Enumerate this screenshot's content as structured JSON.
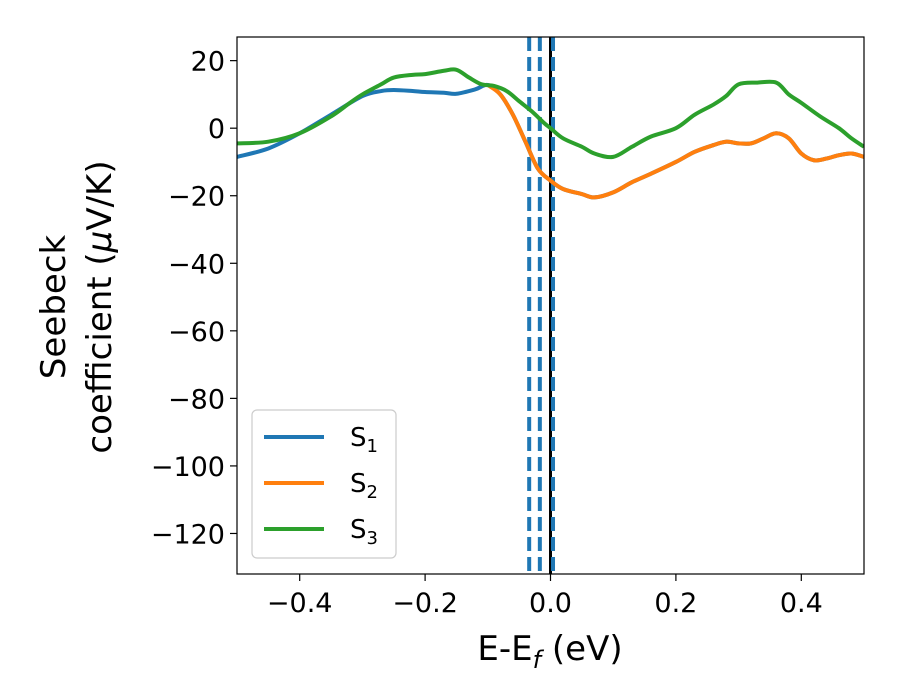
{
  "chart_data": {
    "type": "line",
    "title": "",
    "xlabel": {
      "main": "E-E",
      "sub": "f",
      "suffix": " (eV)"
    },
    "ylabel": {
      "line1": "Seebeck",
      "line2_pre": "coefficient  (",
      "line2_mu": "μ",
      "line2_post": "V/K)"
    },
    "xlim": [
      -0.5,
      0.5
    ],
    "ylim": [
      -132,
      27
    ],
    "xticks": [
      -0.4,
      -0.2,
      0.0,
      0.2,
      0.4
    ],
    "xtick_labels": [
      "−0.4",
      "−0.2",
      "0.0",
      "0.2",
      "0.4"
    ],
    "yticks": [
      20,
      0,
      -20,
      -40,
      -60,
      -80,
      -100,
      -120
    ],
    "ytick_labels": [
      "20",
      "0",
      "−20",
      "−40",
      "−60",
      "−80",
      "−100",
      "−120"
    ],
    "grid": false,
    "legend_position": "lower-left",
    "series": [
      {
        "name": "S",
        "sub": "1",
        "color": "#1f77b4",
        "x": [
          -0.5,
          -0.45,
          -0.4,
          -0.35,
          -0.3,
          -0.27,
          -0.25,
          -0.22,
          -0.2,
          -0.17,
          -0.15,
          -0.12,
          -0.1,
          -0.08,
          -0.06,
          -0.04,
          -0.02,
          0.0,
          0.02,
          0.05,
          0.07,
          0.1,
          0.13,
          0.16,
          0.2,
          0.23,
          0.26,
          0.28,
          0.3,
          0.32,
          0.34,
          0.36,
          0.38,
          0.4,
          0.42,
          0.44,
          0.46,
          0.48,
          0.5
        ],
        "y": [
          -8.5,
          -6,
          -1.5,
          4,
          9.5,
          11,
          11.3,
          11,
          10.7,
          10.5,
          10.2,
          11.5,
          12.8,
          10,
          4,
          -4,
          -12,
          -15.5,
          -18,
          -19.5,
          -20.5,
          -19,
          -16,
          -13.5,
          -10,
          -7,
          -5,
          -4,
          -4.5,
          -4.5,
          -3,
          -1.5,
          -3,
          -7.5,
          -9.5,
          -9,
          -8,
          -7.5,
          -8.5
        ]
      },
      {
        "name": "S",
        "sub": "2",
        "color": "#ff7f0e",
        "x": [
          -0.1,
          -0.08,
          -0.06,
          -0.04,
          -0.02,
          0.0,
          0.02,
          0.05,
          0.07,
          0.1,
          0.13,
          0.16,
          0.2,
          0.23,
          0.26,
          0.28,
          0.3,
          0.32,
          0.34,
          0.36,
          0.38,
          0.4,
          0.42,
          0.44,
          0.46,
          0.48,
          0.5
        ],
        "y": [
          12.8,
          10,
          4,
          -4,
          -12,
          -15.5,
          -18,
          -19.5,
          -20.5,
          -19,
          -16,
          -13.5,
          -10,
          -7,
          -5,
          -4,
          -4.5,
          -4.5,
          -3,
          -1.5,
          -3,
          -7.5,
          -9.5,
          -9,
          -8,
          -7.5,
          -8.5
        ]
      },
      {
        "name": "S",
        "sub": "3",
        "color": "#2ca02c",
        "x": [
          -0.5,
          -0.45,
          -0.4,
          -0.35,
          -0.32,
          -0.3,
          -0.27,
          -0.25,
          -0.22,
          -0.2,
          -0.17,
          -0.15,
          -0.13,
          -0.11,
          -0.09,
          -0.07,
          -0.05,
          -0.03,
          -0.01,
          0.0,
          0.02,
          0.05,
          0.07,
          0.1,
          0.13,
          0.16,
          0.2,
          0.23,
          0.26,
          0.28,
          0.3,
          0.33,
          0.36,
          0.38,
          0.4,
          0.43,
          0.46,
          0.48,
          0.5
        ],
        "y": [
          -4.5,
          -4,
          -1.5,
          3.5,
          7.5,
          10,
          13,
          15,
          15.8,
          16,
          17,
          17.3,
          15,
          13,
          12.5,
          11,
          8,
          5,
          1.5,
          0,
          -3,
          -5.5,
          -7.5,
          -8.5,
          -5.5,
          -2.5,
          0,
          4,
          7,
          9.5,
          13,
          13.5,
          13.5,
          10,
          7.5,
          3.5,
          0,
          -3,
          -5.5
        ]
      }
    ],
    "vlines": [
      {
        "x": -0.034,
        "color": "#1f77b4",
        "style": "dashed"
      },
      {
        "x": -0.017,
        "color": "#1f77b4",
        "style": "dashed"
      },
      {
        "x": 0.0,
        "color": "#000000",
        "style": "solid"
      },
      {
        "x": 0.004,
        "color": "#1f77b4",
        "style": "dashed"
      }
    ]
  }
}
